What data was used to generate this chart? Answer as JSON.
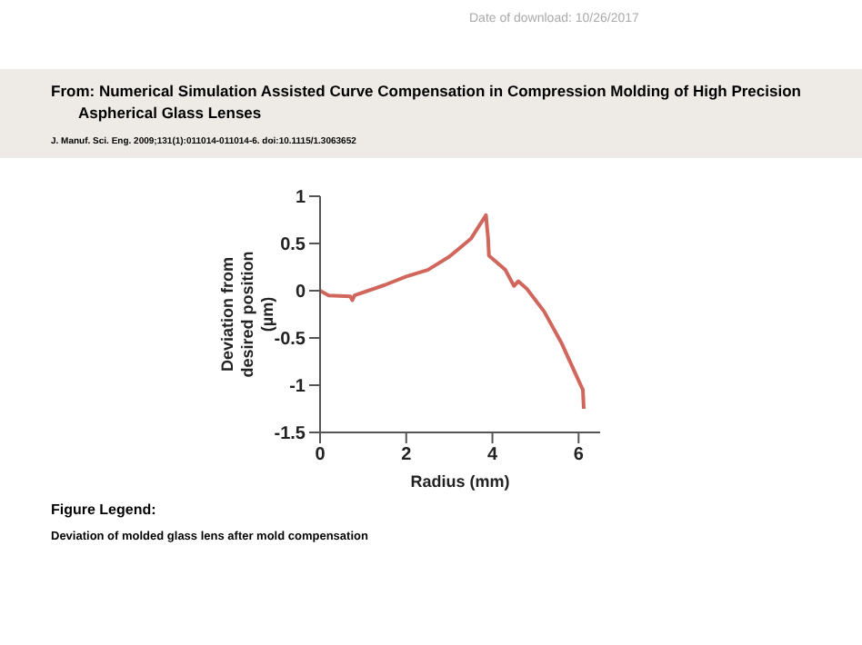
{
  "chart_data": {
    "type": "line",
    "title": "From: Numerical Simulation Assisted Curve Compensation in Compression Molding of High Precision Aspherical Glass Lenses",
    "subtitle": "J. Manuf. Sci. Eng. 2009;131(1):011014-011014-6. doi:10.1115/1.3063652",
    "xlabel": "Radius (mm)",
    "ylabel": "Deviation from desired position (µm)",
    "annotations": [
      "Date of download:  10/26/2017",
      "Figure Legend:",
      "Deviation of molded glass lens after mold compensation"
    ],
    "x": [
      0,
      0.2,
      0.7,
      0.75,
      0.8,
      1.5,
      2,
      2.5,
      3,
      3.5,
      3.85,
      3.9,
      3.92,
      4.1,
      4.3,
      4.5,
      4.6,
      4.8,
      5.2,
      5.6,
      6,
      6.1,
      6.12
    ],
    "series": [
      {
        "color": "#d0665c",
        "values": [
          0,
          -0.05,
          -0.06,
          -0.1,
          -0.05,
          0.06,
          0.15,
          0.22,
          0.36,
          0.55,
          0.8,
          0.55,
          0.37,
          0.3,
          0.22,
          0.05,
          0.1,
          0.02,
          -0.22,
          -0.55,
          -0.95,
          -1.05,
          -1.25
        ]
      }
    ],
    "xlim": [
      0,
      6.5
    ],
    "xticks": [
      0,
      2,
      4,
      6
    ],
    "ylim": [
      -1.5,
      1
    ],
    "yticks": [
      -1.5,
      -1,
      -0.5,
      0,
      0.5,
      1
    ],
    "grid": false,
    "legend": false,
    "marker": "none",
    "line_style": "solid"
  }
}
